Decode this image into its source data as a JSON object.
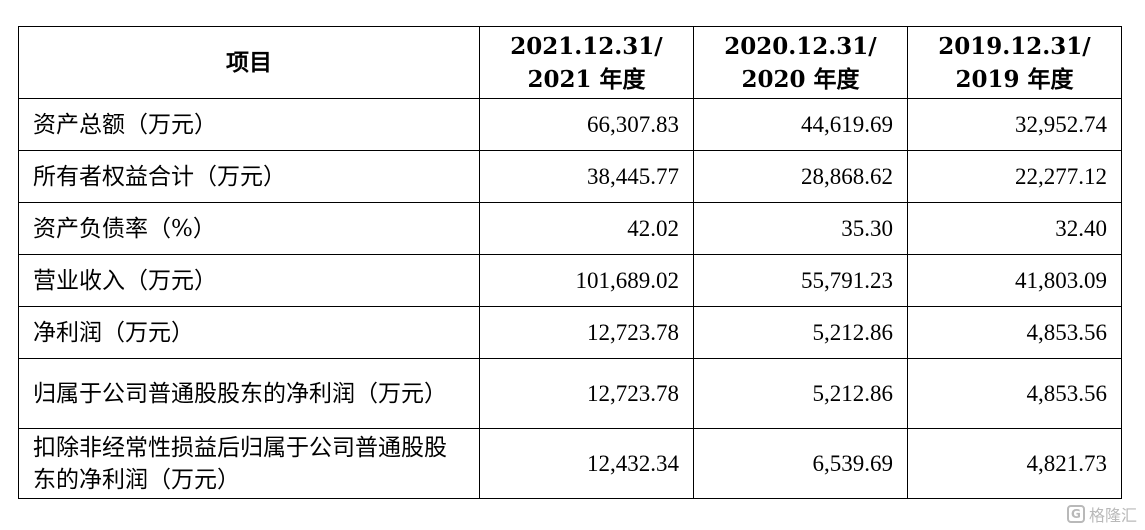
{
  "table": {
    "header": {
      "item": "项目",
      "col1_line1": "2021.12.31/",
      "col1_line2": "2021 年度",
      "col2_line1": "2020.12.31/",
      "col2_line2": "2020 年度",
      "col3_line1": "2019.12.31/",
      "col3_line2": "2019 年度"
    },
    "rows": [
      {
        "label": "资产总额（万元）",
        "v2021": "66,307.83",
        "v2020": "44,619.69",
        "v2019": "32,952.74"
      },
      {
        "label": "所有者权益合计（万元）",
        "v2021": "38,445.77",
        "v2020": "28,868.62",
        "v2019": "22,277.12"
      },
      {
        "label": "资产负债率（%）",
        "v2021": "42.02",
        "v2020": "35.30",
        "v2019": "32.40"
      },
      {
        "label": "营业收入（万元）",
        "v2021": "101,689.02",
        "v2020": "55,791.23",
        "v2019": "41,803.09"
      },
      {
        "label": "净利润（万元）",
        "v2021": "12,723.78",
        "v2020": "5,212.86",
        "v2019": "4,853.56"
      },
      {
        "label": "归属于公司普通股股东的净利润（万元）",
        "v2021": "12,723.78",
        "v2020": "5,212.86",
        "v2019": "4,853.56"
      },
      {
        "label": "扣除非经常性损益后归属于公司普通股股东的净利润（万元）",
        "v2021": "12,432.34",
        "v2020": "6,539.69",
        "v2019": "4,821.73"
      }
    ]
  },
  "watermark": {
    "logo_glyph": "G",
    "text": "格隆汇",
    "icon": "gelonghui-logo-icon"
  }
}
